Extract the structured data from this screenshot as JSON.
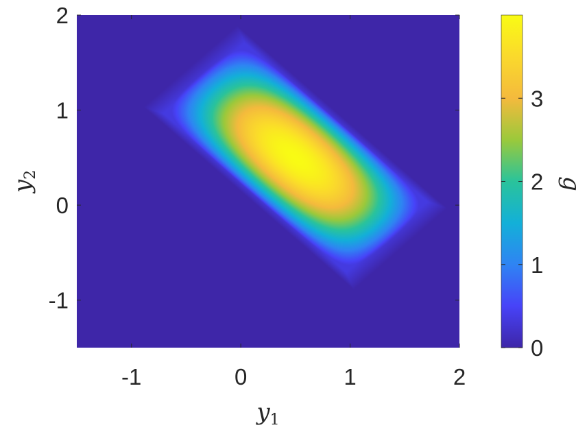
{
  "chart_data": {
    "type": "heatmap",
    "title": "",
    "xlabel": "y1",
    "ylabel": "y2",
    "xlabel_parts": {
      "base": "y",
      "sub": "1"
    },
    "ylabel_parts": {
      "base": "y",
      "sub": "2"
    },
    "xlim": [
      -1.5,
      2
    ],
    "ylim": [
      -1.5,
      2
    ],
    "xticks": [
      -1,
      0,
      1,
      2
    ],
    "xtick_labels": [
      "-1",
      "0",
      "1",
      "2"
    ],
    "yticks": [
      -1,
      0,
      1,
      2
    ],
    "ytick_labels": [
      "-1",
      "0",
      "1",
      "2"
    ],
    "grid": false,
    "colormap": "parula",
    "colorbar": {
      "label": "g",
      "range": [
        0,
        4
      ],
      "ticks": [
        0,
        1,
        2,
        3
      ],
      "tick_labels": [
        "0",
        "1",
        "2",
        "3"
      ]
    },
    "field": {
      "description_type": "support-region",
      "support_polygon": [
        [
          -0.8,
          1.0
        ],
        [
          0.0,
          1.8
        ],
        [
          1.9,
          0.0
        ],
        [
          1.0,
          -0.8
        ]
      ],
      "peak_location": [
        0.5,
        0.5
      ],
      "peak_value": 4.0,
      "background_value": 0
    },
    "palette": [
      "#3e26a8",
      "#4743f8",
      "#2f84f3",
      "#13b0d8",
      "#2ac39b",
      "#9bc93b",
      "#f4ba3d",
      "#fad92c",
      "#f9fb14"
    ]
  }
}
